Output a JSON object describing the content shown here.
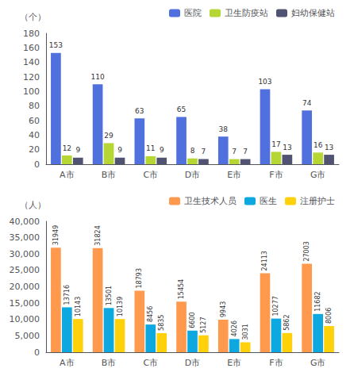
{
  "chart_data": [
    {
      "type": "bar",
      "categories": [
        "A市",
        "B市",
        "C市",
        "D市",
        "E市",
        "F市",
        "G市"
      ],
      "ylabel": "（个）",
      "ylim": [
        0,
        180
      ],
      "yticks": [
        0,
        20,
        40,
        60,
        80,
        100,
        120,
        140,
        160,
        180
      ],
      "series": [
        {
          "name": "医院",
          "values": [
            153,
            110,
            63,
            65,
            38,
            103,
            74
          ]
        },
        {
          "name": "卫生防疫站",
          "values": [
            12,
            29,
            11,
            8,
            7,
            17,
            16
          ]
        },
        {
          "name": "妇幼保健站",
          "values": [
            9,
            9,
            9,
            7,
            7,
            13,
            13
          ]
        }
      ],
      "legend": "upper right",
      "data_labels": true
    },
    {
      "type": "bar",
      "categories": [
        "A市",
        "B市",
        "C市",
        "D市",
        "E市",
        "F市",
        "G市"
      ],
      "ylabel": "（人）",
      "ylim": [
        0,
        40000
      ],
      "yticks": [
        0,
        5000,
        10000,
        15000,
        20000,
        25000,
        30000,
        35000,
        40000
      ],
      "series": [
        {
          "name": "卫生技术人员",
          "values": [
            31949,
            31824,
            18793,
            15454,
            9943,
            24113,
            27003
          ]
        },
        {
          "name": "医生",
          "values": [
            13716,
            13501,
            8456,
            6600,
            4026,
            10277,
            11682
          ]
        },
        {
          "name": "注册护士",
          "values": [
            10143,
            10139,
            5835,
            5127,
            3031,
            5862,
            8006
          ]
        }
      ],
      "legend": "upper right",
      "data_labels": true
    }
  ]
}
